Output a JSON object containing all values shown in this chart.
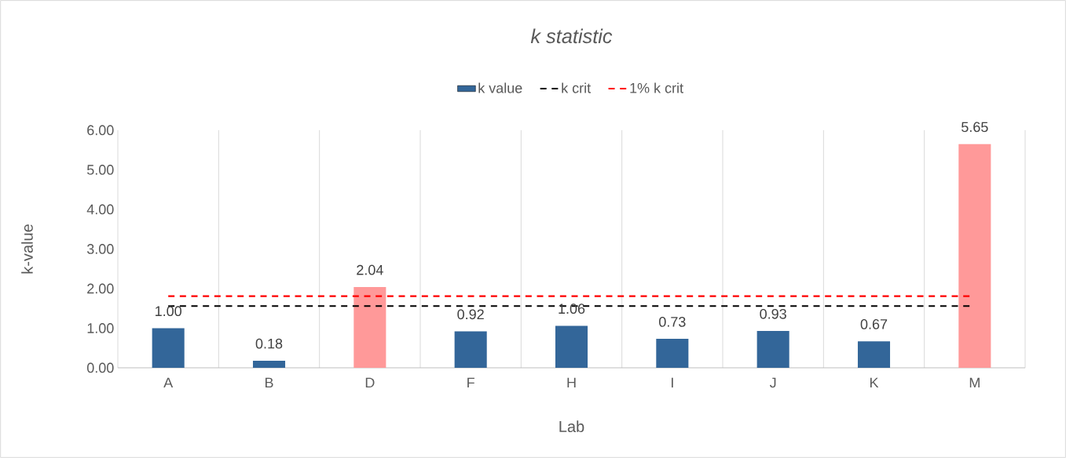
{
  "chart_data": {
    "type": "bar",
    "title": "k statistic",
    "xlabel": "Lab",
    "ylabel": "k-value",
    "categories": [
      "A",
      "B",
      "D",
      "F",
      "H",
      "I",
      "J",
      "K",
      "M"
    ],
    "series": [
      {
        "name": "k value",
        "color": "#336699",
        "colors": [
          "#336699",
          "#336699",
          "#ff9999",
          "#336699",
          "#336699",
          "#336699",
          "#336699",
          "#336699",
          "#ff9999"
        ],
        "values": [
          1.0,
          0.18,
          2.04,
          0.92,
          1.06,
          0.73,
          0.93,
          0.67,
          5.65
        ],
        "value_labels": [
          "1.00",
          "0.18",
          "2.04",
          "0.92",
          "1.06",
          "0.73",
          "0.93",
          "0.67",
          "5.65"
        ]
      },
      {
        "name": "k crit",
        "type": "line",
        "color": "#000000",
        "line_style": "dashed",
        "values": [
          1.56,
          1.56,
          1.56,
          1.56,
          1.56,
          1.56,
          1.56,
          1.56,
          1.56
        ]
      },
      {
        "name": "1% k crit",
        "type": "line",
        "color": "#ff0000",
        "line_style": "dashed",
        "values": [
          1.81,
          1.81,
          1.81,
          1.81,
          1.81,
          1.81,
          1.81,
          1.81,
          1.81
        ]
      }
    ],
    "ylim": [
      0,
      6
    ],
    "yticks": [
      {
        "value": 0,
        "label": "0.00"
      },
      {
        "value": 1,
        "label": "1.00"
      },
      {
        "value": 2,
        "label": "2.00"
      },
      {
        "value": 3,
        "label": "3.00"
      },
      {
        "value": 4,
        "label": "4.00"
      },
      {
        "value": 5,
        "label": "5.00"
      },
      {
        "value": 6,
        "label": "6.00"
      }
    ],
    "grid": "x",
    "legend": "top",
    "marker": "none"
  }
}
